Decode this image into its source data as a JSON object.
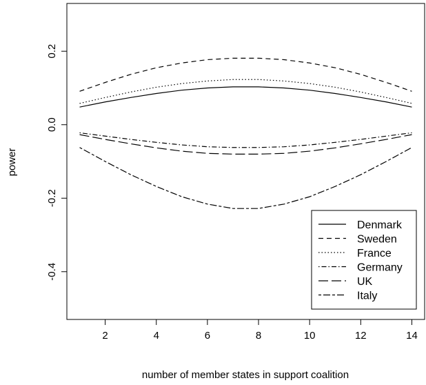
{
  "chart_data": {
    "type": "line",
    "title": "",
    "xlabel": "number of member states in support coalition",
    "ylabel": "power",
    "xlim": [
      0.5,
      14.5
    ],
    "ylim": [
      -0.53,
      0.33
    ],
    "x_ticks": [
      2,
      4,
      6,
      8,
      10,
      12,
      14
    ],
    "x_tick_labels": [
      "2",
      "4",
      "6",
      "8",
      "10",
      "12",
      "14"
    ],
    "y_ticks": [
      -0.4,
      -0.2,
      0.0,
      0.2
    ],
    "y_tick_labels": [
      "-0.4",
      "-0.2",
      "0.0",
      "0.2"
    ],
    "grid": false,
    "legend_position": "bottom-right",
    "x": [
      1,
      2,
      3,
      4,
      5,
      6,
      7,
      8,
      9,
      10,
      11,
      12,
      13,
      14
    ],
    "series": [
      {
        "name": "Denmark",
        "dash": "solid",
        "values": [
          0.048,
          0.062,
          0.074,
          0.085,
          0.094,
          0.1,
          0.103,
          0.103,
          0.1,
          0.094,
          0.085,
          0.074,
          0.062,
          0.048
        ]
      },
      {
        "name": "Sweden",
        "dash": "dashed",
        "values": [
          0.091,
          0.115,
          0.137,
          0.155,
          0.168,
          0.177,
          0.181,
          0.181,
          0.177,
          0.168,
          0.155,
          0.137,
          0.115,
          0.091
        ]
      },
      {
        "name": "France",
        "dash": "dotted",
        "values": [
          0.058,
          0.074,
          0.089,
          0.102,
          0.112,
          0.119,
          0.123,
          0.123,
          0.119,
          0.112,
          0.102,
          0.089,
          0.074,
          0.058
        ]
      },
      {
        "name": "Germany",
        "dash": "dotdash",
        "values": [
          -0.022,
          -0.031,
          -0.04,
          -0.048,
          -0.055,
          -0.06,
          -0.062,
          -0.062,
          -0.06,
          -0.055,
          -0.048,
          -0.04,
          -0.031,
          -0.022
        ]
      },
      {
        "name": "UK",
        "dash": "longdash",
        "values": [
          -0.027,
          -0.04,
          -0.052,
          -0.063,
          -0.072,
          -0.078,
          -0.08,
          -0.08,
          -0.078,
          -0.072,
          -0.063,
          -0.052,
          -0.04,
          -0.027
        ]
      },
      {
        "name": "Italy",
        "dash": "twodash",
        "values": [
          -0.062,
          -0.1,
          -0.136,
          -0.168,
          -0.196,
          -0.216,
          -0.228,
          -0.228,
          -0.216,
          -0.196,
          -0.168,
          -0.136,
          -0.1,
          -0.062
        ]
      }
    ]
  }
}
